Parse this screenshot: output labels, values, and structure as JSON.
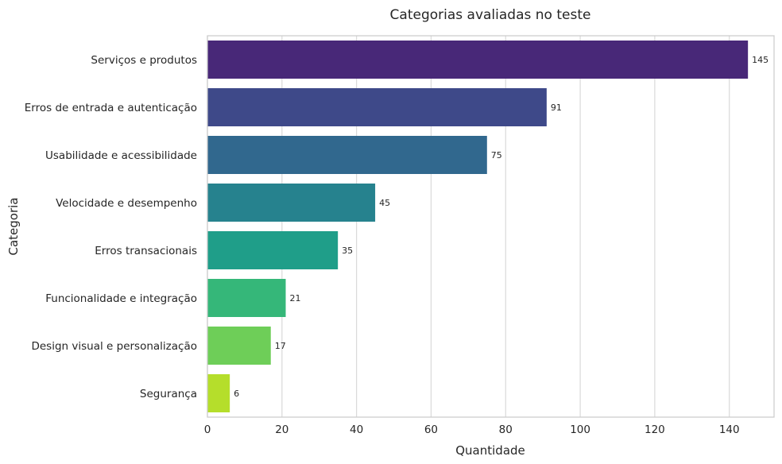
{
  "chart_data": {
    "type": "bar",
    "orientation": "horizontal",
    "title": "Categorias avaliadas no teste",
    "xlabel": "Quantidade",
    "ylabel": "Categoria",
    "categories": [
      "Serviços e produtos",
      "Erros de entrada e autenticação",
      "Usabilidade e acessibilidade",
      "Velocidade e desempenho",
      "Erros transacionais",
      "Funcionalidade e integração",
      "Design visual e personalização",
      "Segurança"
    ],
    "values": [
      145,
      91,
      75,
      45,
      35,
      21,
      17,
      6
    ],
    "data_labels": [
      "145",
      "91",
      "75",
      "45",
      "35",
      "21",
      "17",
      "6"
    ],
    "colors": [
      "#482878",
      "#3e4989",
      "#31688e",
      "#26828e",
      "#1f9e89",
      "#35b779",
      "#6ece58",
      "#b5de2b"
    ],
    "xlim": [
      0,
      152
    ],
    "xticks": [
      0,
      20,
      40,
      60,
      80,
      100,
      120,
      140
    ],
    "xtick_labels": [
      "0",
      "20",
      "40",
      "60",
      "80",
      "100",
      "120",
      "140"
    ],
    "grid": true,
    "legend": false
  }
}
